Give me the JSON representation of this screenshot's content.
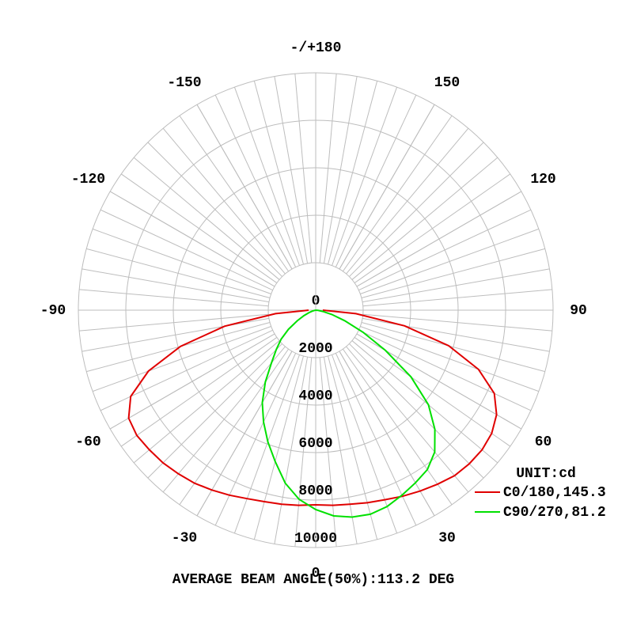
{
  "chart_data": {
    "type": "polar",
    "footer": "AVERAGE BEAM ANGLE(50%):113.2 DEG",
    "legend_title": "UNIT:cd",
    "legend": "bottom right",
    "rlim": [
      0,
      10000
    ],
    "rticks": [
      0,
      2000,
      4000,
      6000,
      8000,
      10000
    ],
    "angle_ticks": [
      0,
      30,
      60,
      90,
      120,
      150,
      {
        "value": 180,
        "label": "-/+180"
      },
      -150,
      -120,
      -90,
      -60,
      -30
    ],
    "x": [
      -90,
      -85,
      -80,
      -75,
      -70,
      -65,
      -60,
      -55,
      -50,
      -45,
      -40,
      -35,
      -30,
      -25,
      -20,
      -15,
      -10,
      -5,
      0,
      5,
      10,
      15,
      20,
      25,
      30,
      35,
      40,
      45,
      50,
      55,
      60,
      65,
      70,
      75,
      80,
      85,
      90
    ],
    "series": [
      {
        "name": "C0/180,145.3",
        "color": "#e00000",
        "values": [
          300,
          1700,
          3900,
          5900,
          7500,
          8600,
          9100,
          9200,
          9150,
          9100,
          9000,
          8900,
          8750,
          8600,
          8450,
          8350,
          8300,
          8250,
          8200,
          8250,
          8300,
          8400,
          8500,
          8650,
          8800,
          8950,
          9100,
          9150,
          9150,
          9050,
          8800,
          8300,
          7300,
          5800,
          3800,
          1700,
          300
        ]
      },
      {
        "name": "C90/270,81.2",
        "color": "#00e000",
        "values": [
          0,
          0,
          50,
          150,
          300,
          550,
          900,
          1400,
          1900,
          2350,
          2900,
          3700,
          4500,
          5200,
          5900,
          6600,
          7400,
          8000,
          8400,
          8700,
          8850,
          8900,
          8800,
          8600,
          8400,
          8200,
          7800,
          7100,
          6200,
          4900,
          3400,
          2200,
          1300,
          700,
          300,
          100,
          0
        ]
      }
    ]
  }
}
